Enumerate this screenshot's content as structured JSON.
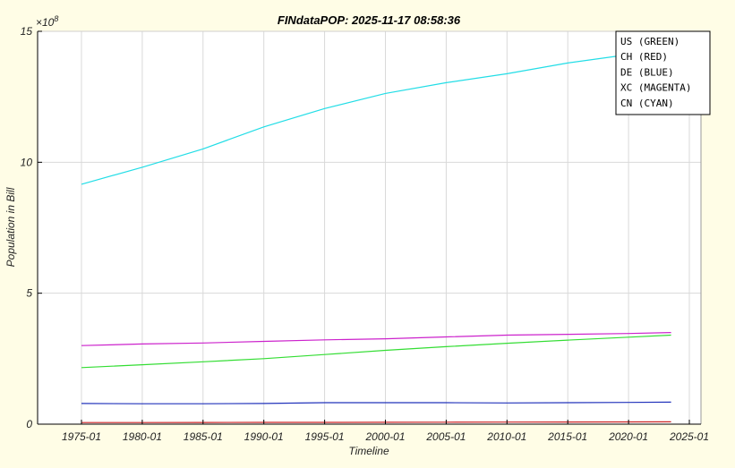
{
  "chart_data": {
    "type": "line",
    "title": "FINdataPOP: 2025-11-17 08:58:36",
    "xlabel": "Timeline",
    "ylabel": "Population in Bill",
    "y_exponent_label": "×10^8",
    "y_exponent": "8",
    "ylim": [
      0,
      15
    ],
    "yticks": [
      0,
      5,
      10,
      15
    ],
    "xticks": [
      "1975-01",
      "1980-01",
      "1985-01",
      "1990-01",
      "1995-01",
      "2000-01",
      "2005-01",
      "2010-01",
      "2015-01",
      "2020-01",
      "2025-01"
    ],
    "xlim_years": [
      1971.4,
      2026.0
    ],
    "grid": true,
    "legend_position": "top-right",
    "x": [
      1975,
      1980,
      1985,
      1990,
      1995,
      2000,
      2005,
      2010,
      2015,
      2020,
      2023.5
    ],
    "series": [
      {
        "name": "US (GREEN)",
        "code": "US",
        "color": "#33dd33",
        "values": [
          2.16,
          2.27,
          2.38,
          2.5,
          2.66,
          2.82,
          2.96,
          3.09,
          3.21,
          3.32,
          3.4
        ]
      },
      {
        "name": "CH (RED)",
        "code": "CH",
        "color": "#cc2222",
        "values": [
          0.063,
          0.063,
          0.065,
          0.068,
          0.07,
          0.072,
          0.075,
          0.078,
          0.083,
          0.086,
          0.089
        ]
      },
      {
        "name": "DE (BLUE)",
        "code": "DE",
        "color": "#2233bb",
        "values": [
          0.79,
          0.78,
          0.78,
          0.79,
          0.82,
          0.82,
          0.82,
          0.81,
          0.82,
          0.83,
          0.84
        ]
      },
      {
        "name": "XC (MAGENTA)",
        "code": "XC",
        "color": "#cc22cc",
        "values": [
          3.0,
          3.06,
          3.1,
          3.16,
          3.22,
          3.26,
          3.33,
          3.4,
          3.43,
          3.46,
          3.5
        ]
      },
      {
        "name": "CN (CYAN)",
        "code": "CN",
        "color": "#22dde6",
        "values": [
          9.16,
          9.81,
          10.51,
          11.35,
          12.05,
          12.63,
          13.04,
          13.38,
          13.79,
          14.11,
          14.11
        ]
      }
    ]
  },
  "legend": {
    "items": [
      "US (GREEN)",
      "CH (RED)",
      "DE (BLUE)",
      "XC (MAGENTA)",
      "CN (CYAN)"
    ]
  },
  "colors": {
    "figure_background": "#fffde6",
    "axes_background": "#ffffff",
    "grid": "#d9d9d9",
    "axis": "#000000"
  }
}
